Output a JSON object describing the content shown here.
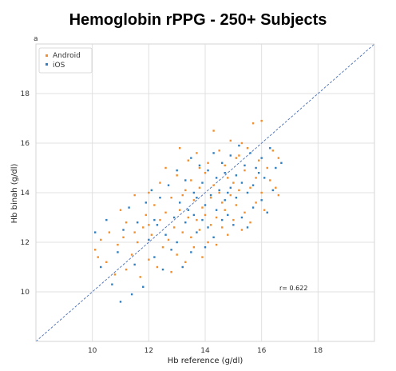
{
  "chart_data": {
    "type": "scatter",
    "title": "Hemoglobin rPPG - 250+ Subjects",
    "panel_label": "a",
    "xlabel": "Hb reference (g/dl)",
    "ylabel": "Hb binah (g/dl)",
    "xlim": [
      8,
      20
    ],
    "ylim": [
      8,
      20
    ],
    "xticks": [
      10,
      12,
      14,
      16,
      18
    ],
    "yticks": [
      10,
      12,
      14,
      16,
      18
    ],
    "grid": true,
    "legend_position": "top-left",
    "identity_line": true,
    "annotation": "r= 0.622",
    "colors": {
      "android": "#f28e2b",
      "ios": "#2f7fc1",
      "identity": "#4a6fb3",
      "grid": "#e0e0e0"
    },
    "series": [
      {
        "name": "Android",
        "points": [
          [
            10.1,
            11.7
          ],
          [
            10.2,
            11.4
          ],
          [
            10.3,
            12.1
          ],
          [
            10.5,
            11.2
          ],
          [
            10.6,
            12.4
          ],
          [
            10.8,
            10.7
          ],
          [
            10.9,
            11.9
          ],
          [
            11.0,
            13.3
          ],
          [
            11.1,
            12.2
          ],
          [
            11.2,
            10.9
          ],
          [
            11.2,
            12.8
          ],
          [
            11.4,
            11.5
          ],
          [
            11.5,
            13.9
          ],
          [
            11.6,
            12.0
          ],
          [
            11.7,
            10.6
          ],
          [
            11.8,
            12.6
          ],
          [
            11.9,
            13.1
          ],
          [
            12.0,
            11.3
          ],
          [
            12.0,
            14.0
          ],
          [
            12.1,
            12.3
          ],
          [
            12.2,
            13.5
          ],
          [
            12.3,
            11.0
          ],
          [
            12.4,
            12.9
          ],
          [
            12.4,
            14.4
          ],
          [
            12.5,
            11.8
          ],
          [
            12.6,
            13.2
          ],
          [
            12.6,
            15.0
          ],
          [
            12.7,
            12.1
          ],
          [
            12.8,
            13.8
          ],
          [
            12.8,
            10.8
          ],
          [
            12.9,
            12.6
          ],
          [
            13.0,
            14.7
          ],
          [
            13.0,
            11.5
          ],
          [
            13.1,
            13.3
          ],
          [
            13.1,
            15.8
          ],
          [
            13.2,
            12.4
          ],
          [
            13.3,
            14.1
          ],
          [
            13.3,
            11.2
          ],
          [
            13.4,
            13.0
          ],
          [
            13.4,
            15.3
          ],
          [
            13.5,
            12.2
          ],
          [
            13.5,
            14.5
          ],
          [
            13.6,
            13.7
          ],
          [
            13.6,
            11.8
          ],
          [
            13.7,
            12.9
          ],
          [
            13.7,
            15.6
          ],
          [
            13.8,
            14.2
          ],
          [
            13.8,
            12.5
          ],
          [
            13.9,
            13.4
          ],
          [
            13.9,
            11.4
          ],
          [
            14.0,
            14.8
          ],
          [
            14.0,
            13.1
          ],
          [
            14.1,
            12.0
          ],
          [
            14.1,
            15.2
          ],
          [
            14.2,
            13.8
          ],
          [
            14.2,
            12.7
          ],
          [
            14.3,
            16.5
          ],
          [
            14.3,
            14.3
          ],
          [
            14.4,
            13.0
          ],
          [
            14.4,
            11.9
          ],
          [
            14.5,
            15.7
          ],
          [
            14.5,
            14.0
          ],
          [
            14.6,
            12.6
          ],
          [
            14.6,
            13.6
          ],
          [
            14.7,
            15.1
          ],
          [
            14.8,
            14.6
          ],
          [
            14.8,
            12.3
          ],
          [
            14.9,
            13.9
          ],
          [
            14.9,
            16.1
          ],
          [
            15.0,
            14.4
          ],
          [
            15.0,
            12.9
          ],
          [
            15.1,
            15.4
          ],
          [
            15.1,
            13.5
          ],
          [
            15.2,
            14.1
          ],
          [
            15.3,
            12.5
          ],
          [
            15.3,
            16.0
          ],
          [
            15.4,
            14.9
          ],
          [
            15.4,
            13.2
          ],
          [
            15.5,
            15.8
          ],
          [
            15.6,
            14.2
          ],
          [
            15.6,
            12.8
          ],
          [
            15.7,
            16.8
          ],
          [
            15.8,
            14.6
          ],
          [
            15.8,
            13.6
          ],
          [
            15.9,
            15.3
          ],
          [
            16.0,
            14.0
          ],
          [
            16.0,
            16.9
          ],
          [
            16.1,
            13.3
          ],
          [
            16.2,
            15.0
          ],
          [
            16.3,
            14.5
          ],
          [
            16.4,
            15.7
          ],
          [
            16.5,
            14.2
          ],
          [
            16.6,
            13.9
          ],
          [
            16.6,
            15.4
          ],
          [
            12.0,
            12.7
          ],
          [
            13.2,
            13.9
          ],
          [
            14.7,
            13.3
          ],
          [
            15.2,
            15.5
          ],
          [
            11.5,
            12.4
          ],
          [
            13.8,
            15.0
          ]
        ]
      },
      {
        "name": "iOS",
        "points": [
          [
            10.1,
            12.4
          ],
          [
            10.3,
            11.0
          ],
          [
            10.5,
            12.9
          ],
          [
            10.7,
            10.3
          ],
          [
            10.9,
            11.6
          ],
          [
            11.0,
            9.6
          ],
          [
            11.1,
            12.5
          ],
          [
            11.3,
            13.4
          ],
          [
            11.4,
            9.9
          ],
          [
            11.5,
            11.1
          ],
          [
            11.6,
            12.8
          ],
          [
            11.8,
            10.2
          ],
          [
            11.9,
            13.6
          ],
          [
            12.0,
            12.1
          ],
          [
            12.1,
            14.1
          ],
          [
            12.2,
            11.4
          ],
          [
            12.3,
            12.7
          ],
          [
            12.4,
            13.8
          ],
          [
            12.5,
            10.9
          ],
          [
            12.6,
            12.3
          ],
          [
            12.7,
            14.3
          ],
          [
            12.8,
            11.7
          ],
          [
            12.9,
            13.0
          ],
          [
            13.0,
            14.9
          ],
          [
            13.0,
            12.0
          ],
          [
            13.1,
            13.6
          ],
          [
            13.2,
            11.0
          ],
          [
            13.3,
            14.5
          ],
          [
            13.3,
            12.8
          ],
          [
            13.4,
            13.3
          ],
          [
            13.5,
            15.4
          ],
          [
            13.5,
            11.6
          ],
          [
            13.6,
            14.0
          ],
          [
            13.7,
            12.4
          ],
          [
            13.7,
            13.8
          ],
          [
            13.8,
            15.1
          ],
          [
            13.9,
            12.9
          ],
          [
            13.9,
            14.4
          ],
          [
            14.0,
            13.5
          ],
          [
            14.0,
            11.8
          ],
          [
            14.1,
            14.9
          ],
          [
            14.1,
            12.6
          ],
          [
            14.2,
            13.9
          ],
          [
            14.3,
            15.6
          ],
          [
            14.3,
            12.2
          ],
          [
            14.4,
            14.6
          ],
          [
            14.4,
            13.3
          ],
          [
            14.5,
            14.1
          ],
          [
            14.6,
            15.2
          ],
          [
            14.6,
            12.9
          ],
          [
            14.7,
            13.7
          ],
          [
            14.7,
            14.8
          ],
          [
            14.8,
            13.1
          ],
          [
            14.9,
            15.5
          ],
          [
            14.9,
            14.2
          ],
          [
            15.0,
            12.7
          ],
          [
            15.1,
            14.7
          ],
          [
            15.1,
            13.8
          ],
          [
            15.2,
            15.9
          ],
          [
            15.3,
            14.4
          ],
          [
            15.3,
            13.0
          ],
          [
            15.4,
            15.1
          ],
          [
            15.5,
            14.0
          ],
          [
            15.5,
            12.6
          ],
          [
            15.6,
            15.6
          ],
          [
            15.7,
            14.3
          ],
          [
            15.7,
            13.4
          ],
          [
            15.8,
            15.0
          ],
          [
            15.9,
            14.8
          ],
          [
            16.0,
            13.7
          ],
          [
            16.0,
            15.4
          ],
          [
            16.1,
            14.6
          ],
          [
            16.2,
            13.2
          ],
          [
            16.3,
            15.8
          ],
          [
            16.4,
            14.1
          ],
          [
            16.5,
            15.0
          ],
          [
            16.7,
            15.2
          ],
          [
            12.2,
            12.9
          ],
          [
            13.6,
            13.1
          ],
          [
            14.8,
            14.0
          ]
        ]
      }
    ]
  }
}
